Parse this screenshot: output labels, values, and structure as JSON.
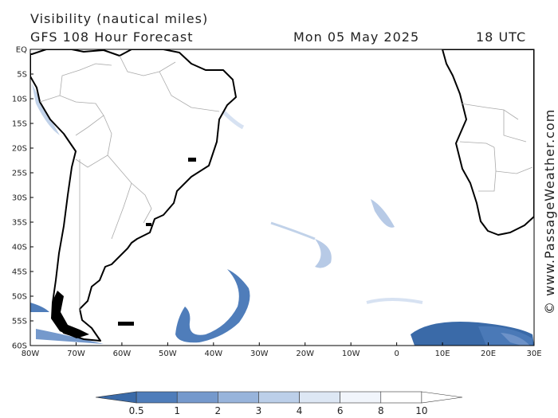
{
  "header": {
    "title": "Visibility (nautical miles)",
    "subtitle": "GFS 108 Hour Forecast",
    "date": "Mon 05 May 2025",
    "time": "18 UTC"
  },
  "credit": "© www.PassageWeather.com",
  "lat_labels": [
    "EQ",
    "5S",
    "10S",
    "15S",
    "20S",
    "25S",
    "30S",
    "35S",
    "40S",
    "45S",
    "50S",
    "55S",
    "60S"
  ],
  "lon_labels": [
    "80W",
    "70W",
    "60W",
    "50W",
    "40W",
    "30W",
    "20W",
    "10W",
    "0",
    "10E",
    "20E",
    "30E"
  ],
  "colorbar": {
    "labels": [
      "0.5",
      "1",
      "2",
      "3",
      "4",
      "6",
      "8",
      "10"
    ],
    "colors": [
      "#3a6aa8",
      "#4f7dba",
      "#7599cc",
      "#98b4db",
      "#bccfe9",
      "#dde7f4",
      "#f1f5fb",
      "#ffffff"
    ]
  }
}
